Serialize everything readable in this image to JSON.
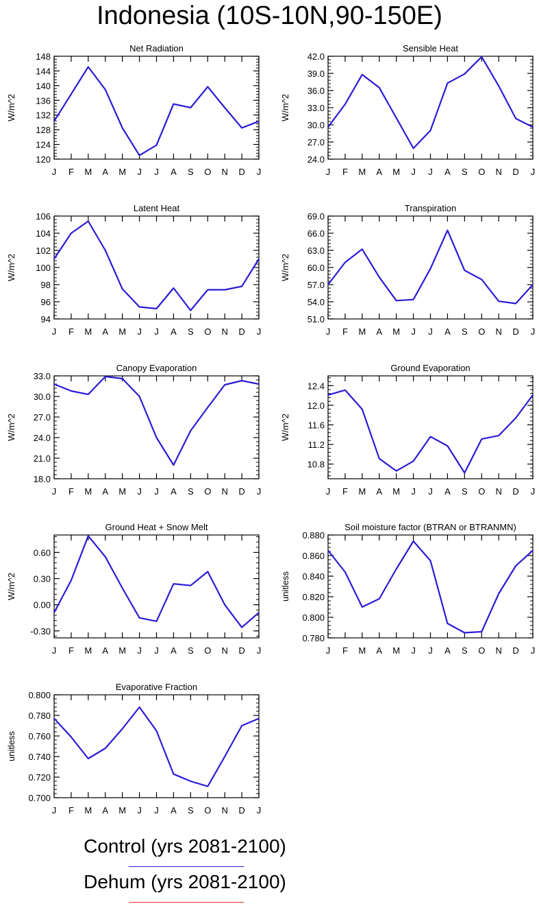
{
  "title": "Indonesia (10S-10N,90-150E)",
  "months": [
    "J",
    "F",
    "M",
    "A",
    "M",
    "J",
    "J",
    "A",
    "S",
    "O",
    "N",
    "D",
    "J"
  ],
  "line_color": "#2a1ad6",
  "chart_data": [
    {
      "type": "line",
      "title": "Net Radiation",
      "ylabel": "W/m^2",
      "ylim": [
        120,
        148
      ],
      "yticks": [
        120,
        124,
        128,
        132,
        136,
        140,
        144,
        148
      ],
      "decimals": 0,
      "x": [
        "J",
        "F",
        "M",
        "A",
        "M",
        "J",
        "J",
        "A",
        "S",
        "O",
        "N",
        "D",
        "J"
      ],
      "series": [
        {
          "values": [
            130.3,
            137.7,
            145.1,
            138.9,
            128.5,
            121.0,
            123.8,
            135.0,
            134.0,
            139.7,
            134.0,
            128.5,
            130.3
          ]
        }
      ]
    },
    {
      "type": "line",
      "title": "Sensible Heat",
      "ylabel": "W/m^2",
      "ylim": [
        24,
        42
      ],
      "yticks": [
        24,
        27,
        30,
        33,
        36,
        39,
        42
      ],
      "decimals": 1,
      "x": [
        "J",
        "F",
        "M",
        "A",
        "M",
        "J",
        "J",
        "A",
        "S",
        "O",
        "N",
        "D",
        "J"
      ],
      "series": [
        {
          "values": [
            29.6,
            33.6,
            38.8,
            36.5,
            31.2,
            25.9,
            29.0,
            37.3,
            38.9,
            41.9,
            36.8,
            31.1,
            29.6
          ]
        }
      ]
    },
    {
      "type": "line",
      "title": "Latent Heat",
      "ylabel": "W/m^2",
      "ylim": [
        94,
        106
      ],
      "yticks": [
        94,
        96,
        98,
        100,
        102,
        104,
        106
      ],
      "decimals": 0,
      "x": [
        "J",
        "F",
        "M",
        "A",
        "M",
        "J",
        "J",
        "A",
        "S",
        "O",
        "N",
        "D",
        "J"
      ],
      "series": [
        {
          "values": [
            101.0,
            104.0,
            105.4,
            102.0,
            97.5,
            95.4,
            95.2,
            97.6,
            95.0,
            97.4,
            97.4,
            97.8,
            101.0
          ]
        }
      ]
    },
    {
      "type": "line",
      "title": "Transpiration",
      "ylabel": "W/m^2",
      "ylim": [
        51,
        69
      ],
      "yticks": [
        51,
        54,
        57,
        60,
        63,
        66,
        69
      ],
      "decimals": 1,
      "x": [
        "J",
        "F",
        "M",
        "A",
        "M",
        "J",
        "J",
        "A",
        "S",
        "O",
        "N",
        "D",
        "J"
      ],
      "series": [
        {
          "values": [
            57.0,
            60.9,
            63.2,
            58.3,
            54.2,
            54.4,
            59.8,
            66.5,
            59.5,
            57.9,
            54.1,
            53.7,
            57.0
          ]
        }
      ]
    },
    {
      "type": "line",
      "title": "Canopy Evaporation",
      "ylabel": "W/m^2",
      "ylim": [
        18,
        33
      ],
      "yticks": [
        18,
        21,
        24,
        27,
        30,
        33
      ],
      "decimals": 1,
      "x": [
        "J",
        "F",
        "M",
        "A",
        "M",
        "J",
        "J",
        "A",
        "S",
        "O",
        "N",
        "D",
        "J"
      ],
      "series": [
        {
          "values": [
            31.8,
            30.8,
            30.3,
            32.9,
            32.6,
            30.0,
            24.0,
            20.0,
            25.0,
            28.4,
            31.7,
            32.3,
            31.8
          ]
        }
      ]
    },
    {
      "type": "line",
      "title": "Ground Evaporation",
      "ylabel": "W/m^2",
      "ylim": [
        10.5,
        12.6
      ],
      "yticks": [
        10.8,
        11.2,
        11.6,
        12.0,
        12.4
      ],
      "decimals": 1,
      "x": [
        "J",
        "F",
        "M",
        "A",
        "M",
        "J",
        "J",
        "A",
        "S",
        "O",
        "N",
        "D",
        "J"
      ],
      "series": [
        {
          "values": [
            12.21,
            12.31,
            11.92,
            10.91,
            10.66,
            10.86,
            11.36,
            11.17,
            10.62,
            11.31,
            11.38,
            11.74,
            12.21
          ]
        }
      ]
    },
    {
      "type": "line",
      "title": "Ground Heat + Snow Melt",
      "ylabel": "W/m^2",
      "ylim": [
        -0.38,
        0.8
      ],
      "yticks": [
        -0.3,
        0.0,
        0.3,
        0.6
      ],
      "decimals": 2,
      "x": [
        "J",
        "F",
        "M",
        "A",
        "M",
        "J",
        "J",
        "A",
        "S",
        "O",
        "N",
        "D",
        "J"
      ],
      "series": [
        {
          "values": [
            -0.09,
            0.28,
            0.79,
            0.55,
            0.19,
            -0.15,
            -0.19,
            0.24,
            0.22,
            0.38,
            0.0,
            -0.26,
            -0.09
          ]
        }
      ]
    },
    {
      "type": "line",
      "title": "Soil moisture factor (BTRAN or BTRANMN)",
      "ylabel": "unitless",
      "ylim": [
        0.78,
        0.88
      ],
      "yticks": [
        0.78,
        0.8,
        0.82,
        0.84,
        0.86,
        0.88
      ],
      "decimals": 3,
      "x": [
        "J",
        "F",
        "M",
        "A",
        "M",
        "J",
        "J",
        "A",
        "S",
        "O",
        "N",
        "D",
        "J"
      ],
      "series": [
        {
          "values": [
            0.865,
            0.844,
            0.81,
            0.818,
            0.847,
            0.874,
            0.855,
            0.794,
            0.785,
            0.786,
            0.823,
            0.85,
            0.865
          ]
        }
      ]
    },
    {
      "type": "line",
      "title": "Evaporative Fraction",
      "ylabel": "unitless",
      "ylim": [
        0.7,
        0.8
      ],
      "yticks": [
        0.7,
        0.72,
        0.74,
        0.76,
        0.78,
        0.8
      ],
      "decimals": 3,
      "x": [
        "J",
        "F",
        "M",
        "A",
        "M",
        "J",
        "J",
        "A",
        "S",
        "O",
        "N",
        "D",
        "J"
      ],
      "series": [
        {
          "values": [
            0.777,
            0.759,
            0.738,
            0.748,
            0.767,
            0.788,
            0.765,
            0.723,
            0.716,
            0.711,
            0.74,
            0.77,
            0.777
          ]
        }
      ]
    }
  ],
  "legend": [
    {
      "label": "Control (yrs 2081-2100)",
      "color": "#2a1ad6"
    },
    {
      "label": "Dehum (yrs 2081-2100)",
      "color": "#e8312a"
    }
  ]
}
